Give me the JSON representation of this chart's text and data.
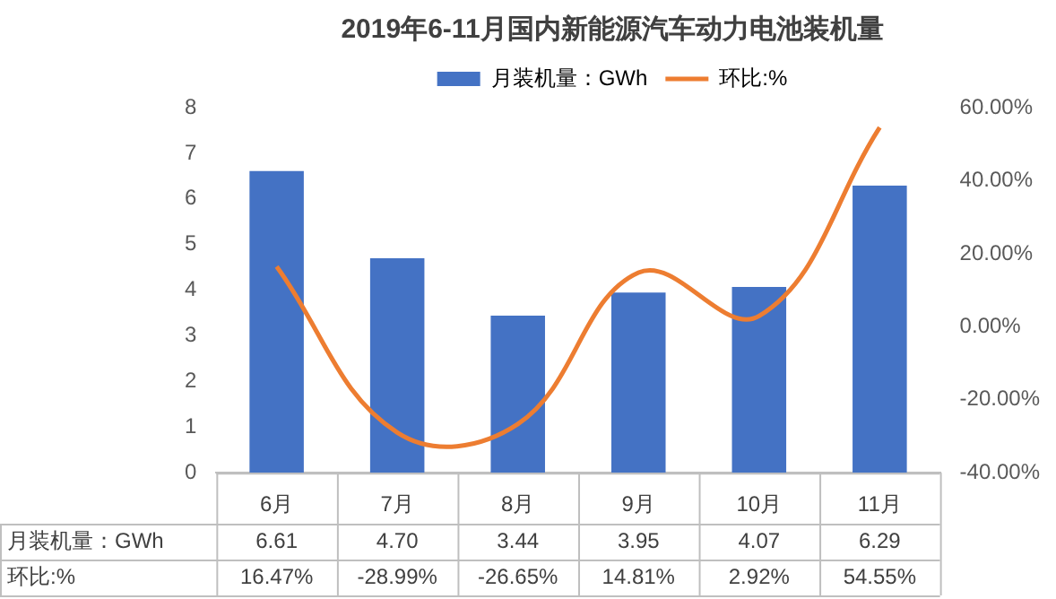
{
  "chart_data": {
    "type": "bar",
    "title": "2019年6-11月国内新能源汽车动力电池装机量",
    "categories": [
      "6月",
      "7月",
      "8月",
      "9月",
      "10月",
      "11月"
    ],
    "series": [
      {
        "name": "月装机量：GWh",
        "color": "#4472c4",
        "values": [
          6.61,
          4.7,
          3.44,
          3.95,
          4.07,
          6.29
        ],
        "value_labels": [
          "6.61",
          "4.70",
          "3.44",
          "3.95",
          "4.07",
          "6.29"
        ]
      },
      {
        "name": "环比:%",
        "type": "line",
        "axis": "y2",
        "color": "#ed7d31",
        "values": [
          16.47,
          -28.99,
          -26.65,
          14.81,
          2.92,
          54.55
        ],
        "value_labels": [
          "16.47%",
          "-28.99%",
          "-26.65%",
          "14.81%",
          "2.92%",
          "54.55%"
        ]
      }
    ],
    "ylim": [
      0,
      8
    ],
    "yticks": [
      0,
      1,
      2,
      3,
      4,
      5,
      6,
      7,
      8
    ],
    "y2lim": [
      -40,
      60
    ],
    "y2ticks": [
      {
        "value": -40,
        "label": "-40.00%"
      },
      {
        "value": -20,
        "label": "-20.00%"
      },
      {
        "value": 0,
        "label": "0.00%"
      },
      {
        "value": 20,
        "label": "20.00%"
      },
      {
        "value": 40,
        "label": "40.00%"
      },
      {
        "value": 60,
        "label": "60.00%"
      }
    ],
    "legend": "top",
    "grid": false,
    "marker": "none",
    "line_style": "solid"
  }
}
